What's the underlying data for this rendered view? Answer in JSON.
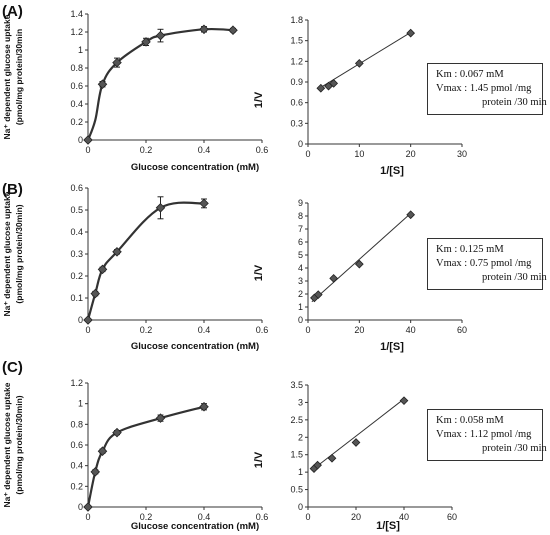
{
  "chart_data": [
    {
      "type": "line",
      "panel_label": "(A)",
      "chart": "saturation",
      "xlabel": "Glucose concentration (mM)",
      "ylabel_lines": [
        "Na⁺ dependent glucose uptake",
        "(pmol/mg protein/30min"
      ],
      "xlim": [
        0,
        0.6
      ],
      "ylim": [
        0,
        1.4
      ],
      "xticks": [
        "0",
        "0.2",
        "0.4",
        "0.6"
      ],
      "yticks": [
        "0",
        "0.2",
        "0.4",
        "0.6",
        "0.8",
        "1",
        "1.2",
        "1.4"
      ],
      "x": [
        0,
        0.025,
        0.05,
        0.1,
        0.2,
        0.25,
        0.4,
        0.5
      ],
      "y": [
        0,
        0.22,
        0.62,
        0.86,
        1.09,
        1.16,
        1.23,
        1.22
      ],
      "err": [
        0,
        0,
        0.03,
        0.05,
        0.04,
        0.07,
        0.03,
        0.02
      ]
    },
    {
      "type": "scatter",
      "panel_label": "(A)",
      "chart": "lineweaver-burk",
      "xlabel": "1/[S]",
      "ylabel": "1/V",
      "xlim": [
        0,
        30
      ],
      "ylim": [
        0,
        1.8
      ],
      "xticks": [
        "0",
        "10",
        "20",
        "30"
      ],
      "yticks": [
        "0",
        "0.3",
        "0.6",
        "0.9",
        "1.2",
        "1.5",
        "1.8"
      ],
      "x": [
        2.5,
        4,
        5,
        10,
        20
      ],
      "y": [
        0.81,
        0.84,
        0.88,
        1.17,
        1.61
      ],
      "fit": [
        [
          2,
          0.8
        ],
        [
          20,
          1.62
        ]
      ],
      "info": [
        "Km :  0.067 mM",
        "Vmax : 1.45 pmol /mg",
        "protein /30 min"
      ]
    },
    {
      "type": "line",
      "panel_label": "(B)",
      "chart": "saturation",
      "xlabel": "Glucose concentration (mM)",
      "ylabel_lines": [
        "Na⁺ dependent glucose uptake",
        "(pmol/mg protein/30min)"
      ],
      "xlim": [
        0,
        0.6
      ],
      "ylim": [
        0,
        0.6
      ],
      "xticks": [
        "0",
        "0.2",
        "0.4",
        "0.6"
      ],
      "yticks": [
        "0",
        "0.1",
        "0.2",
        "0.3",
        "0.4",
        "0.5",
        "0.6"
      ],
      "x": [
        0,
        0.025,
        0.05,
        0.1,
        0.25,
        0.4
      ],
      "y": [
        0,
        0.12,
        0.23,
        0.31,
        0.51,
        0.53
      ],
      "err": [
        0,
        0.01,
        0.01,
        0.01,
        0.05,
        0.02
      ]
    },
    {
      "type": "scatter",
      "panel_label": "(B)",
      "chart": "lineweaver-burk",
      "xlabel": "1/[S]",
      "ylabel": "1/V",
      "xlim": [
        0,
        60
      ],
      "ylim": [
        0,
        9
      ],
      "xticks": [
        "0",
        "20",
        "40",
        "60"
      ],
      "yticks": [
        "0",
        "1",
        "2",
        "3",
        "4",
        "5",
        "6",
        "7",
        "8",
        "9"
      ],
      "x": [
        2.5,
        4,
        10,
        20,
        40
      ],
      "y": [
        1.7,
        1.95,
        3.2,
        4.3,
        8.1
      ],
      "fit": [
        [
          1.5,
          1.4
        ],
        [
          40,
          8.2
        ]
      ],
      "info": [
        "Km :  0.125 mM",
        "Vmax : 0.75 pmol /mg",
        "protein /30 min"
      ]
    },
    {
      "type": "line",
      "panel_label": "(C)",
      "chart": "saturation",
      "xlabel": "Glucose concentration (mM)",
      "ylabel_lines": [
        "Na⁺ dependent glucose uptake",
        "(pmol/mg protein/30min)"
      ],
      "xlim": [
        0,
        0.6
      ],
      "ylim": [
        0,
        1.2
      ],
      "xticks": [
        "0",
        "0.2",
        "0.4",
        "0.6"
      ],
      "yticks": [
        "0",
        "0.2",
        "0.4",
        "0.6",
        "0.8",
        "1",
        "1.2"
      ],
      "x": [
        0,
        0.025,
        0.05,
        0.1,
        0.25,
        0.4
      ],
      "y": [
        0,
        0.34,
        0.54,
        0.72,
        0.86,
        0.97
      ],
      "err": [
        0,
        0.02,
        0.02,
        0.02,
        0.03,
        0.03
      ]
    },
    {
      "type": "scatter",
      "panel_label": "(C)",
      "chart": "lineweaver-burk",
      "xlabel": "1/[S]",
      "ylabel": "1/V",
      "xlim": [
        0,
        60
      ],
      "ylim": [
        0,
        3.5
      ],
      "xticks": [
        "0",
        "20",
        "40",
        "60"
      ],
      "yticks": [
        "0",
        "0.5",
        "1",
        "1.5",
        "2",
        "2.5",
        "3",
        "3.5"
      ],
      "x": [
        2.5,
        4,
        10,
        20,
        40
      ],
      "y": [
        1.1,
        1.2,
        1.4,
        1.85,
        3.05
      ],
      "fit": [
        [
          1.5,
          1.05
        ],
        [
          40,
          3.1
        ]
      ],
      "info": [
        "Km :  0.058 mM",
        "Vmax : 1.12 pmol /mg",
        "protein /30 min"
      ]
    }
  ]
}
